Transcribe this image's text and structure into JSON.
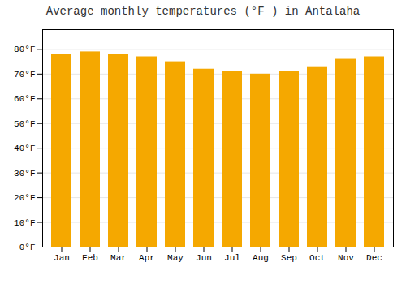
{
  "chart_data": {
    "type": "bar",
    "title": "Average monthly temperatures (°F ) in Antalaha",
    "categories": [
      "Jan",
      "Feb",
      "Mar",
      "Apr",
      "May",
      "Jun",
      "Jul",
      "Aug",
      "Sep",
      "Oct",
      "Nov",
      "Dec"
    ],
    "values": [
      78,
      79,
      78,
      77,
      75,
      72,
      71,
      70,
      71,
      73,
      76,
      77
    ],
    "color": "#F5A800",
    "ylim": [
      0,
      88
    ],
    "yticks": [
      {
        "value": 0,
        "label": "0°F"
      },
      {
        "value": 10,
        "label": "10°F"
      },
      {
        "value": 20,
        "label": "20°F"
      },
      {
        "value": 30,
        "label": "30°F"
      },
      {
        "value": 40,
        "label": "40°F"
      },
      {
        "value": 50,
        "label": "50°F"
      },
      {
        "value": 60,
        "label": "60°F"
      },
      {
        "value": 70,
        "label": "70°F"
      },
      {
        "value": 80,
        "label": "80°F"
      }
    ],
    "grid": true
  }
}
